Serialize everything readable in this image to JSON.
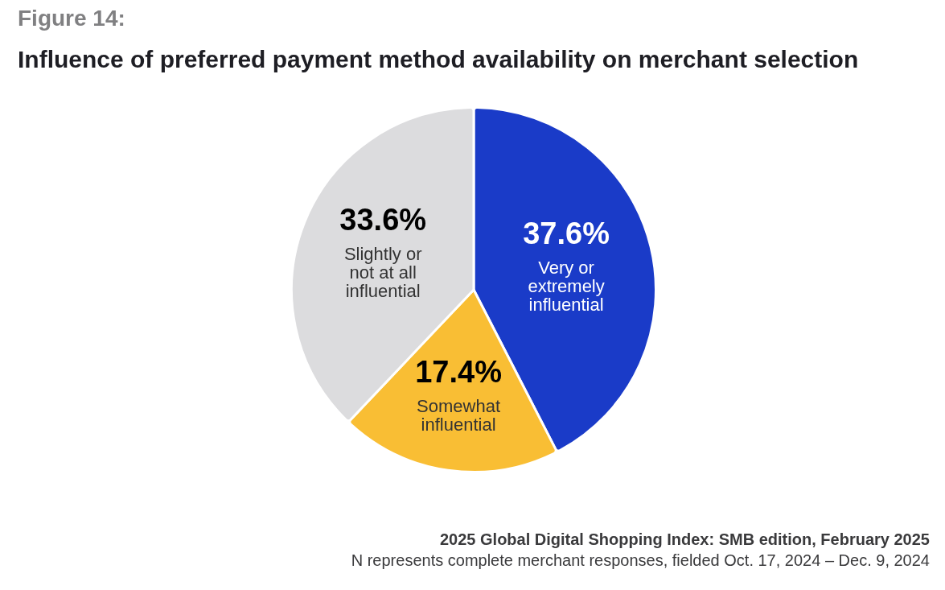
{
  "chart_data": {
    "type": "pie",
    "title": "Figure 14:",
    "subtitle": "Influence of preferred payment method availability on merchant selection",
    "categories": [
      "Very or extremely influential",
      "Somewhat influential",
      "Slightly or not at all influential"
    ],
    "values": [
      37.6,
      17.4,
      33.6
    ],
    "colors": [
      "#1a3bc8",
      "#f9be34",
      "#dcdcde"
    ],
    "value_labels": [
      "37.6%",
      "17.4%",
      "33.6%"
    ],
    "annotations": [
      "2025 Global Digital Shopping Index: SMB edition, February 2025",
      "N represents complete merchant responses, fielded Oct. 17, 2024 – Dec. 9, 2024"
    ]
  }
}
